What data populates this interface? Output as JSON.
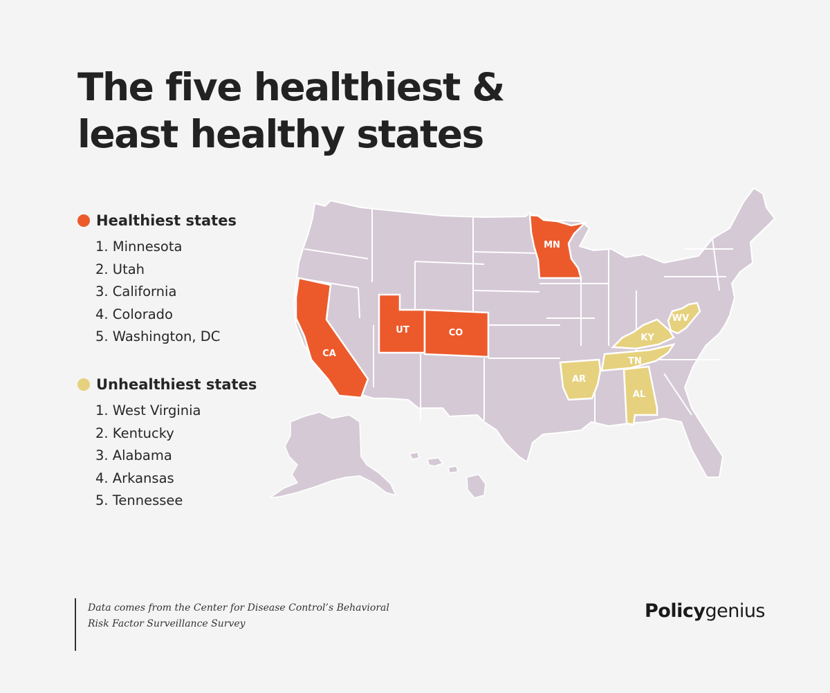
{
  "title": {
    "line1": "The five healthiest &",
    "line2": "least healthy states"
  },
  "colors": {
    "healthy": "#ec5a2c",
    "unhealthy": "#e6d17e",
    "other": "#d4c9d5",
    "border": "#ffffff"
  },
  "legend": {
    "healthiest": {
      "label": "Healthiest states",
      "items": [
        "1. Minnesota",
        "2. Utah",
        "3. California",
        "4. Colorado",
        "5. Washington, DC"
      ]
    },
    "unhealthiest": {
      "label": "Unhealthiest states",
      "items": [
        "1. West Virginia",
        "2. Kentucky",
        "3. Alabama",
        "4. Arkansas",
        "5. Tennessee"
      ]
    }
  },
  "map": {
    "highlighted": [
      {
        "code": "MN",
        "group": "healthiest"
      },
      {
        "code": "UT",
        "group": "healthiest"
      },
      {
        "code": "CA",
        "group": "healthiest"
      },
      {
        "code": "CO",
        "group": "healthiest"
      },
      {
        "code": "WV",
        "group": "unhealthiest"
      },
      {
        "code": "KY",
        "group": "unhealthiest"
      },
      {
        "code": "AL",
        "group": "unhealthiest"
      },
      {
        "code": "AR",
        "group": "unhealthiest"
      },
      {
        "code": "TN",
        "group": "unhealthiest"
      }
    ]
  },
  "source": {
    "line1": "Data comes from the Center for Disease Control’s Behavioral",
    "line2": "Risk Factor Surveillance Survey"
  },
  "logo": {
    "bold": "Policy",
    "light": "genius"
  }
}
